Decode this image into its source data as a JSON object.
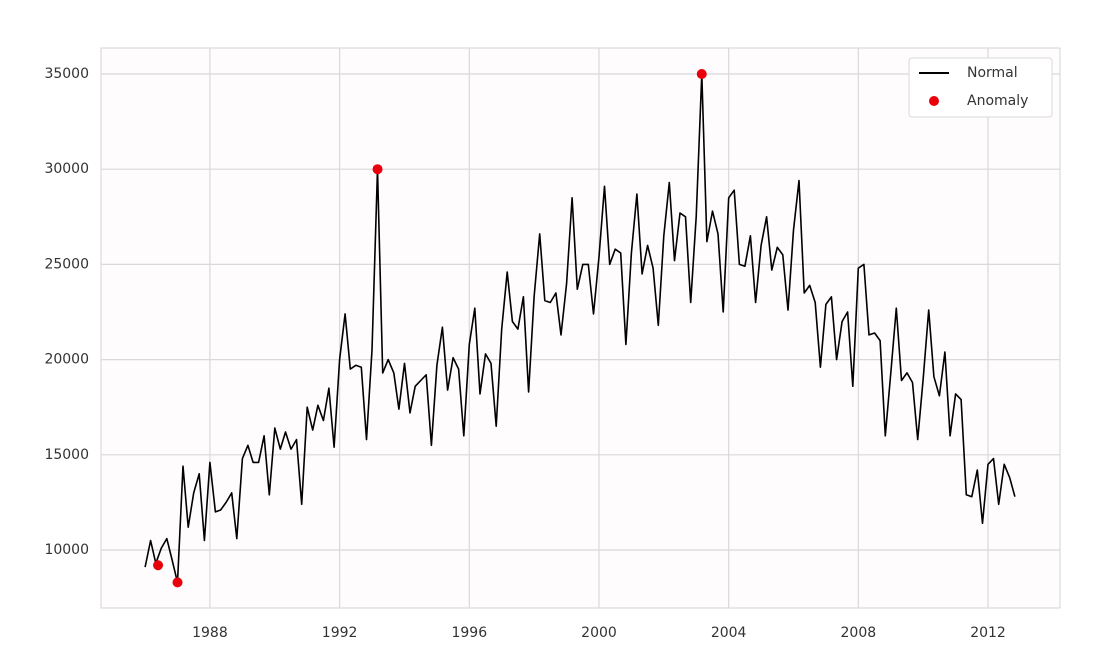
{
  "chart_data": {
    "type": "line",
    "xlim": [
      1984.64,
      2014.22
    ],
    "xticks": [
      1988,
      1992,
      1996,
      2000,
      2004,
      2008,
      2012
    ],
    "ylim": [
      6954,
      36366
    ],
    "yticks": [
      10000,
      15000,
      20000,
      25000,
      30000,
      35000
    ],
    "grid": true,
    "legend": "upper right",
    "series": [
      {
        "name": "Normal",
        "type": "line",
        "color": "#000000",
        "x": [
          1986,
          1986.17,
          1986.33,
          1986.5,
          1986.67,
          1986.83,
          1987,
          1987.17,
          1987.33,
          1987.5,
          1987.67,
          1987.83,
          1988,
          1988.17,
          1988.33,
          1988.5,
          1988.67,
          1988.83,
          1989,
          1989.17,
          1989.33,
          1989.5,
          1989.67,
          1989.83,
          1990,
          1990.17,
          1990.33,
          1990.5,
          1990.67,
          1990.83,
          1991,
          1991.17,
          1991.33,
          1991.5,
          1991.67,
          1991.83,
          1992,
          1992.17,
          1992.33,
          1992.5,
          1992.67,
          1992.83,
          1993,
          1993.17,
          1993.33,
          1993.5,
          1993.67,
          1993.83,
          1994,
          1994.17,
          1994.33,
          1994.5,
          1994.67,
          1994.83,
          1995,
          1995.17,
          1995.33,
          1995.5,
          1995.67,
          1995.83,
          1996,
          1996.17,
          1996.33,
          1996.5,
          1996.67,
          1996.83,
          1997,
          1997.17,
          1997.33,
          1997.5,
          1997.67,
          1997.83,
          1998,
          1998.17,
          1998.33,
          1998.5,
          1998.67,
          1998.83,
          1999,
          1999.17,
          1999.33,
          1999.5,
          1999.67,
          1999.83,
          2000,
          2000.17,
          2000.33,
          2000.5,
          2000.67,
          2000.83,
          2001,
          2001.17,
          2001.33,
          2001.5,
          2001.67,
          2001.83,
          2002,
          2002.17,
          2002.33,
          2002.5,
          2002.67,
          2002.83,
          2003,
          2003.17,
          2003.33,
          2003.5,
          2003.67,
          2003.83,
          2004,
          2004.17,
          2004.33,
          2004.5,
          2004.67,
          2004.83,
          2005,
          2005.17,
          2005.33,
          2005.5,
          2005.67,
          2005.83,
          2006,
          2006.17,
          2006.33,
          2006.5,
          2006.67,
          2006.83,
          2007,
          2007.17,
          2007.33,
          2007.5,
          2007.67,
          2007.83,
          2008,
          2008.17,
          2008.33,
          2008.5,
          2008.67,
          2008.83,
          2009,
          2009.17,
          2009.33,
          2009.5,
          2009.67,
          2009.83,
          2010,
          2010.17,
          2010.33,
          2010.5,
          2010.67,
          2010.83,
          2011,
          2011.17,
          2011.33,
          2011.5,
          2011.67,
          2011.83,
          2012,
          2012.17,
          2012.33,
          2012.5,
          2012.67,
          2012.83
        ],
        "values": [
          9100,
          10500,
          9300,
          10100,
          10600,
          9500,
          8300,
          14400,
          11200,
          13000,
          14000,
          10500,
          14600,
          12000,
          12100,
          12500,
          13000,
          10600,
          14800,
          15500,
          14600,
          14600,
          16000,
          12900,
          16400,
          15300,
          16200,
          15300,
          15800,
          12400,
          17500,
          16300,
          17600,
          16800,
          18500,
          15400,
          20000,
          22400,
          19500,
          19700,
          19600,
          15800,
          20500,
          30000,
          19300,
          20000,
          19300,
          17400,
          19800,
          17200,
          18600,
          18900,
          19200,
          15500,
          19700,
          21700,
          18400,
          20100,
          19500,
          16000,
          20800,
          22700,
          18200,
          20300,
          19800,
          16500,
          21600,
          24600,
          22000,
          21600,
          23300,
          18300,
          23300,
          26600,
          23100,
          23000,
          23500,
          21300,
          24000,
          28500,
          23700,
          25000,
          25000,
          22400,
          25400,
          29100,
          25000,
          25800,
          25600,
          20800,
          25600,
          28700,
          24500,
          26000,
          24800,
          21800,
          26500,
          29300,
          25200,
          27700,
          27500,
          23000,
          27500,
          35000,
          26200,
          27800,
          26600,
          22500,
          28500,
          28900,
          25000,
          24900,
          26500,
          23000,
          26000,
          27500,
          24700,
          25900,
          25500,
          22600,
          26800,
          29400,
          23500,
          23900,
          23000,
          19600,
          22900,
          23300,
          20000,
          22000,
          22500,
          18600,
          24800,
          25000,
          21300,
          21400,
          21000,
          16000,
          19300,
          22700,
          18900,
          19300,
          18800,
          15800,
          19000,
          22600,
          19100,
          18100,
          20400,
          16000,
          18200,
          17900,
          12900,
          12800,
          14200,
          11400,
          14500,
          14800,
          12400,
          14500,
          13800,
          12800
        ]
      },
      {
        "name": "Anomaly",
        "type": "scatter",
        "color": "#e8000b",
        "x": [
          1986.4,
          1987,
          1993.17,
          2003.17
        ],
        "values": [
          9200,
          8300,
          30000,
          35000
        ]
      }
    ]
  }
}
